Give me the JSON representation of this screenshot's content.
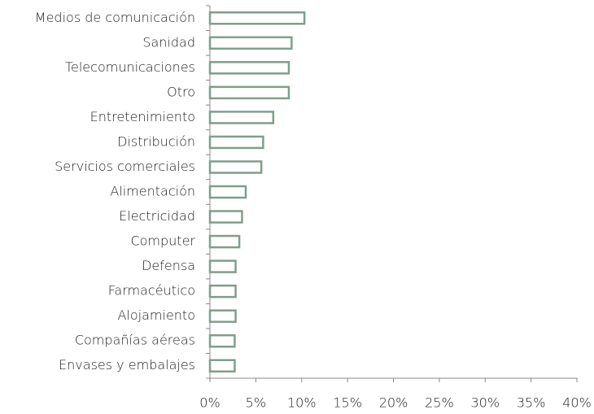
{
  "chart_data": {
    "type": "bar",
    "orientation": "horizontal",
    "categories": [
      "Medios de comunicación",
      "Sanidad",
      "Telecomunicaciones",
      "Otro",
      "Entretenimiento",
      "Distribución ",
      "Servicios comerciales",
      "Alimentación",
      "Electricidad",
      "Computer",
      "Defensa",
      "Farmacéutico",
      "Alojamiento",
      "Compañías aéreas",
      "Envases y embalajes"
    ],
    "values": [
      10.3,
      8.9,
      8.6,
      8.6,
      6.9,
      5.8,
      5.6,
      3.9,
      3.5,
      3.2,
      2.8,
      2.8,
      2.8,
      2.7,
      2.7
    ],
    "color": "#7f9e8c",
    "xlim": [
      0,
      40
    ],
    "xticks": [
      {
        "value": 0,
        "label": "0%"
      },
      {
        "value": 5,
        "label": "5%"
      },
      {
        "value": 10,
        "label": "10%"
      },
      {
        "value": 15,
        "label": "15%"
      },
      {
        "value": 20,
        "label": "20%"
      },
      {
        "value": 25,
        "label": "25%"
      },
      {
        "value": 30,
        "label": "30%"
      },
      {
        "value": 35,
        "label": "35%"
      },
      {
        "value": 40,
        "label": "40%"
      }
    ]
  }
}
